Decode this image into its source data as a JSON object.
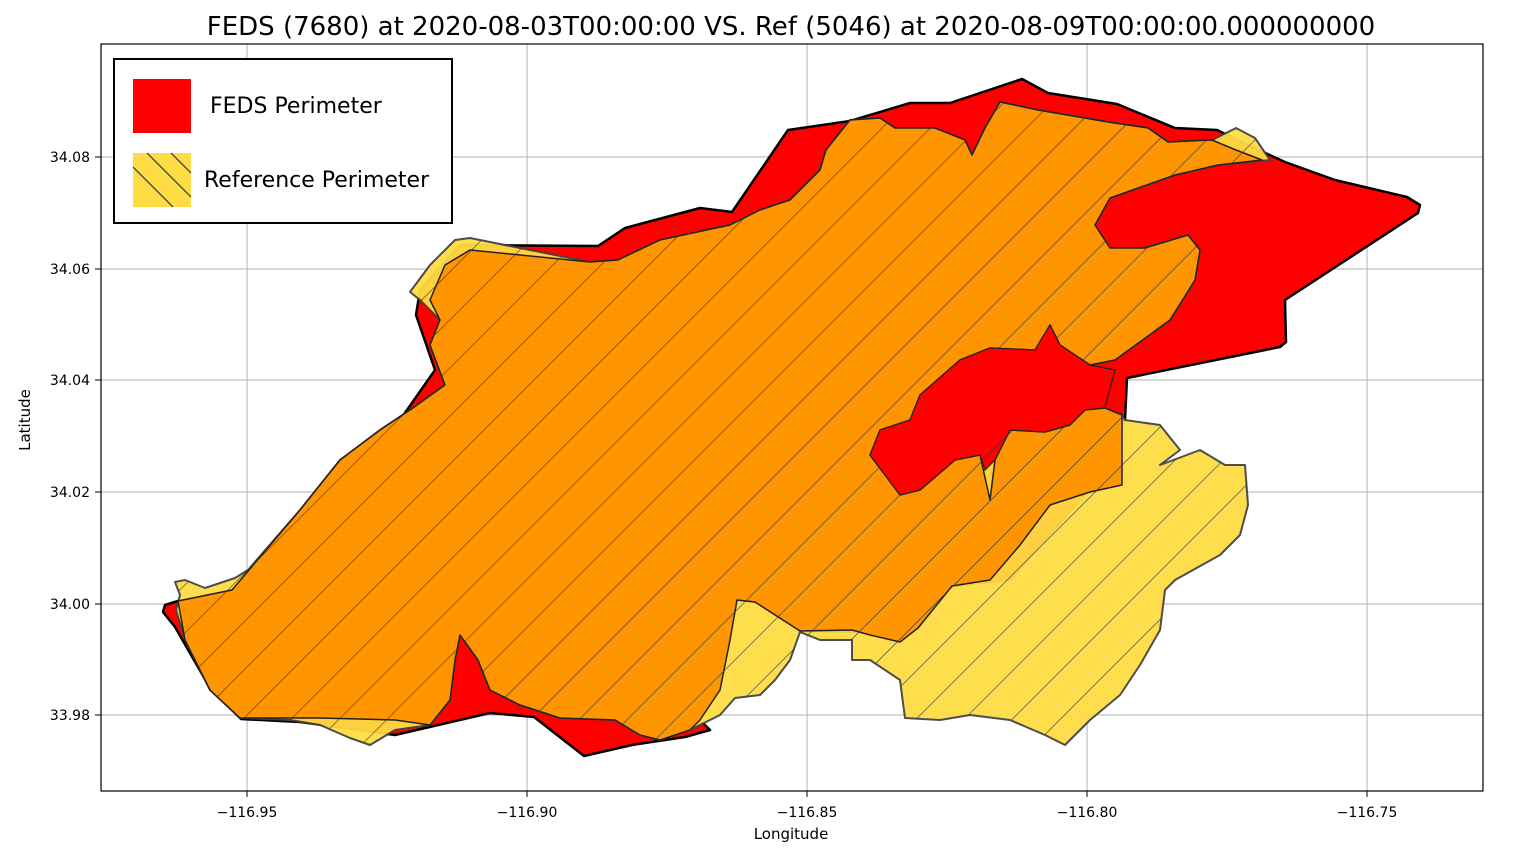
{
  "title": "FEDS (7680) at 2020-08-03T00:00:00 VS. Ref (5046) at 2020-08-09T00:00:00.000000000",
  "axes": {
    "xlabel": "Longitude",
    "ylabel": "Latitude",
    "xticks": [
      "−116.95",
      "−116.90",
      "−116.85",
      "−116.80",
      "−116.75"
    ],
    "yticks": [
      "33.98",
      "34.00",
      "34.02",
      "34.04",
      "34.06",
      "34.08"
    ],
    "grid": true
  },
  "legend": {
    "placement": "top-left",
    "items": [
      {
        "label": "FEDS Perimeter",
        "color": "#ff0000",
        "hatch": false
      },
      {
        "label": "Reference Perimeter",
        "color": "#ffdd44",
        "hatch": true
      }
    ]
  },
  "colors": {
    "feds": "#ff0000",
    "reference": "#ffdd44",
    "overlap": "#ff9500",
    "outline": "#000000"
  }
}
